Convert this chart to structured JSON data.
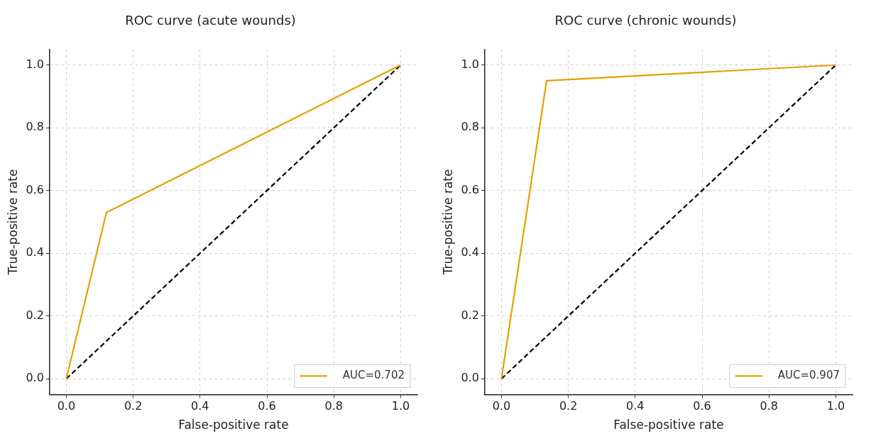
{
  "chart_data": [
    {
      "type": "line",
      "title": "ROC curve (acute wounds)",
      "xlabel": "False-positive rate",
      "ylabel": "True-positive rate",
      "series": [
        {
          "name": "AUC=0.702",
          "color": "#e69f00",
          "x": [
            0,
            0.12,
            1
          ],
          "values": [
            0,
            0.53,
            1
          ],
          "line_style": "solid"
        },
        {
          "color": "#000000",
          "x": [
            0,
            1
          ],
          "values": [
            0,
            1
          ],
          "line_style": "dashed"
        }
      ],
      "xlim": [
        -0.05,
        1.05
      ],
      "ylim": [
        -0.05,
        1.05
      ],
      "xticks": [
        {
          "value": 0,
          "label": "0.0"
        },
        {
          "value": 0.2,
          "label": "0.2"
        },
        {
          "value": 0.4,
          "label": "0.4"
        },
        {
          "value": 0.6,
          "label": "0.6"
        },
        {
          "value": 0.8,
          "label": "0.8"
        },
        {
          "value": 1,
          "label": "1.0"
        }
      ],
      "yticks": [
        {
          "value": 0,
          "label": "0.0"
        },
        {
          "value": 0.2,
          "label": "0.2"
        },
        {
          "value": 0.4,
          "label": "0.4"
        },
        {
          "value": 0.6,
          "label": "0.6"
        },
        {
          "value": 0.8,
          "label": "0.8"
        },
        {
          "value": 1,
          "label": "1.0"
        }
      ],
      "grid": true,
      "legend": "bottom right"
    },
    {
      "type": "line",
      "title": "ROC curve (chronic wounds)",
      "xlabel": "False-positive rate",
      "ylabel": "True-positive rate",
      "series": [
        {
          "name": "AUC=0.907",
          "color": "#e69f00",
          "x": [
            0,
            0.135,
            1
          ],
          "values": [
            0,
            0.95,
            1
          ],
          "line_style": "solid"
        },
        {
          "color": "#000000",
          "x": [
            0,
            1
          ],
          "values": [
            0,
            1
          ],
          "line_style": "dashed"
        }
      ],
      "xlim": [
        -0.05,
        1.05
      ],
      "ylim": [
        -0.05,
        1.05
      ],
      "xticks": [
        {
          "value": 0,
          "label": "0.0"
        },
        {
          "value": 0.2,
          "label": "0.2"
        },
        {
          "value": 0.4,
          "label": "0.4"
        },
        {
          "value": 0.6,
          "label": "0.6"
        },
        {
          "value": 0.8,
          "label": "0.8"
        },
        {
          "value": 1,
          "label": "1.0"
        }
      ],
      "yticks": [
        {
          "value": 0,
          "label": "0.0"
        },
        {
          "value": 0.2,
          "label": "0.2"
        },
        {
          "value": 0.4,
          "label": "0.4"
        },
        {
          "value": 0.6,
          "label": "0.6"
        },
        {
          "value": 0.8,
          "label": "0.8"
        },
        {
          "value": 1,
          "label": "1.0"
        }
      ],
      "grid": true,
      "legend": "bottom right"
    }
  ]
}
